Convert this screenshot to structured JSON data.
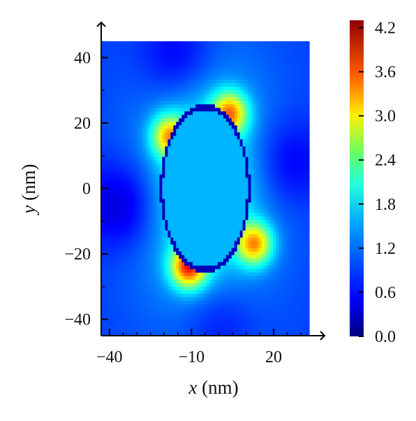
{
  "chart_data": {
    "type": "heatmap",
    "title": "",
    "xlabel": {
      "var": "x",
      "unit": " (nm)"
    },
    "ylabel": {
      "var": "y",
      "unit": " (nm)"
    },
    "xlim": [
      -43,
      33
    ],
    "ylim": [
      -45,
      45
    ],
    "xticks": [
      {
        "value": -40,
        "label": "−40"
      },
      {
        "value": -10,
        "label": "−10"
      },
      {
        "value": 20,
        "label": "20"
      }
    ],
    "yticks": [
      {
        "value": 40,
        "label": "40"
      },
      {
        "value": 20,
        "label": "20"
      },
      {
        "value": 0,
        "label": "0"
      },
      {
        "value": -20,
        "label": "−20"
      },
      {
        "value": -40,
        "label": "−40"
      }
    ],
    "colorbar": {
      "colormap": "jet",
      "range": [
        0,
        4.3
      ],
      "ticks": [
        {
          "value": 0.0,
          "label": "0.0"
        },
        {
          "value": 0.6,
          "label": "0.6"
        },
        {
          "value": 1.2,
          "label": "1.2"
        },
        {
          "value": 1.8,
          "label": "1.8"
        },
        {
          "value": 2.4,
          "label": "2.4"
        },
        {
          "value": 3.0,
          "label": "3.0"
        },
        {
          "value": 3.6,
          "label": "3.6"
        },
        {
          "value": 4.2,
          "label": "4.2"
        }
      ]
    },
    "field": {
      "description_hidden": false,
      "ellipse": {
        "cx": -5,
        "cy": 0,
        "rx": 16,
        "ry": 25
      },
      "background_value": 0.75,
      "inside_value": 1.3,
      "hot_lobes": [
        {
          "x": 4,
          "y": 23,
          "value": 3.4
        },
        {
          "x": 13,
          "y": -17,
          "value": 3.4
        },
        {
          "x": -18,
          "y": 16,
          "value": 3.2
        },
        {
          "x": -11,
          "y": -24,
          "value": 3.8
        }
      ],
      "dark_lobes": [
        {
          "x": -35,
          "y": -5,
          "value": 0.2
        },
        {
          "x": -15,
          "y": 40,
          "value": 0.3
        },
        {
          "x": 0,
          "y": -40,
          "value": 0.4
        },
        {
          "x": 25,
          "y": 8,
          "value": 0.35
        }
      ]
    }
  }
}
